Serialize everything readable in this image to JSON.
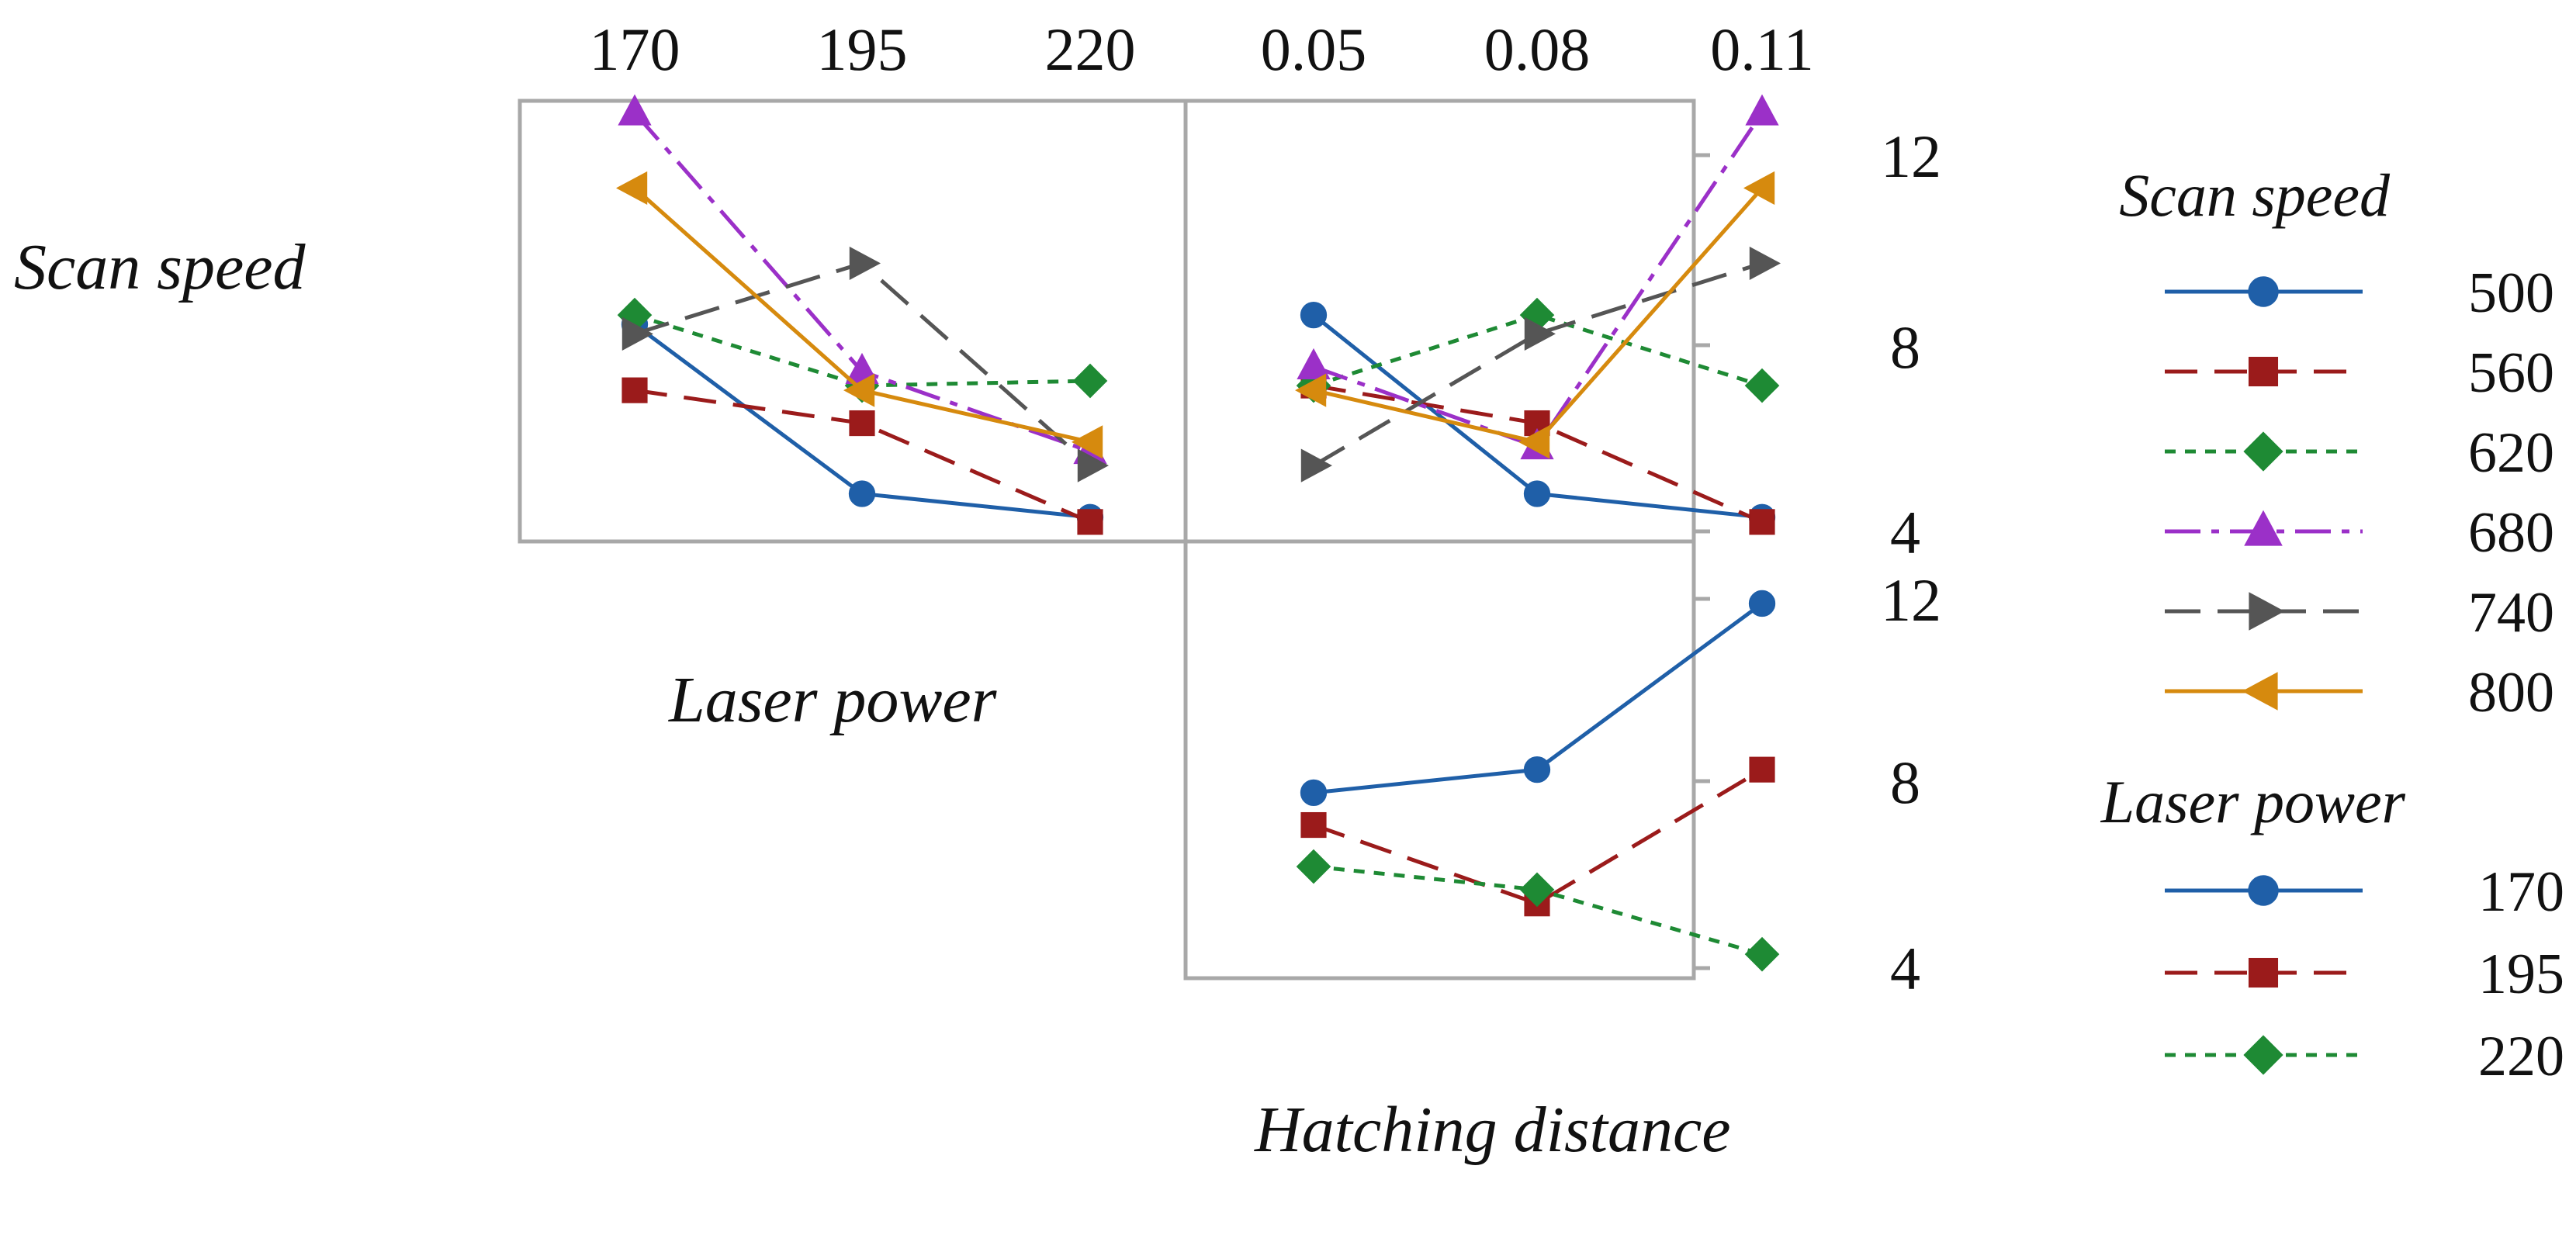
{
  "chart_data": [
    {
      "type": "line",
      "panel": "top-left",
      "x_factor": "Laser power",
      "trace_factor": "Scan speed",
      "categories": [
        "170",
        "195",
        "220"
      ],
      "ylim": [
        4,
        13
      ],
      "series": [
        {
          "name": "500",
          "values": [
            8.4,
            4.8,
            4.3
          ]
        },
        {
          "name": "560",
          "values": [
            7.0,
            6.3,
            4.2
          ]
        },
        {
          "name": "620",
          "values": [
            8.6,
            7.1,
            7.2
          ]
        },
        {
          "name": "680",
          "values": [
            12.9,
            7.4,
            5.7
          ]
        },
        {
          "name": "740",
          "values": [
            8.2,
            9.7,
            5.4
          ]
        },
        {
          "name": "800",
          "values": [
            11.3,
            7.0,
            5.9
          ]
        }
      ]
    },
    {
      "type": "line",
      "panel": "top-right",
      "x_factor": "Hatching distance",
      "trace_factor": "Scan speed",
      "categories": [
        "0.05",
        "0.08",
        "0.11"
      ],
      "ylim": [
        4,
        13
      ],
      "series": [
        {
          "name": "500",
          "values": [
            8.6,
            4.8,
            4.3
          ]
        },
        {
          "name": "560",
          "values": [
            7.1,
            6.3,
            4.2
          ]
        },
        {
          "name": "620",
          "values": [
            7.1,
            8.6,
            7.1
          ]
        },
        {
          "name": "680",
          "values": [
            7.5,
            5.8,
            12.9
          ]
        },
        {
          "name": "740",
          "values": [
            5.4,
            8.2,
            9.7
          ]
        },
        {
          "name": "800",
          "values": [
            7.0,
            5.9,
            11.3
          ]
        }
      ]
    },
    {
      "type": "line",
      "panel": "bottom-right",
      "x_factor": "Hatching distance",
      "trace_factor": "Laser power",
      "categories": [
        "0.05",
        "0.08",
        "0.11"
      ],
      "ylim": [
        4,
        13
      ],
      "series": [
        {
          "name": "170",
          "values": [
            7.8,
            8.3,
            11.9
          ]
        },
        {
          "name": "195",
          "values": [
            7.1,
            5.4,
            8.3
          ]
        },
        {
          "name": "220",
          "values": [
            6.2,
            5.7,
            4.3
          ]
        }
      ]
    }
  ],
  "axis": {
    "top_left_ticks": [
      "170",
      "195",
      "220"
    ],
    "top_right_ticks": [
      "0.05",
      "0.08",
      "0.11"
    ],
    "y_ticks": [
      4,
      8,
      12
    ],
    "y_tick_labels": [
      "4",
      "8",
      "12"
    ]
  },
  "labels": {
    "scan_speed": "Scan speed",
    "laser_power": "Laser power",
    "hatching_distance": "Hatching distance"
  },
  "legends": [
    {
      "title": "Scan speed",
      "entries": [
        "500",
        "560",
        "620",
        "680",
        "740",
        "800"
      ]
    },
    {
      "title": "Laser power",
      "entries": [
        "170",
        "195",
        "220"
      ]
    }
  ],
  "styles": [
    {
      "color": "#1f5fa8",
      "dash": "none",
      "marker": "circle"
    },
    {
      "color": "#9b1b1b",
      "dash": "42 22",
      "marker": "square"
    },
    {
      "color": "#1e8a34",
      "dash": "14 12",
      "marker": "diamond"
    },
    {
      "color": "#9b30c8",
      "dash": "46 14 10 14",
      "marker": "triangle-up"
    },
    {
      "color": "#555555",
      "dash": "46 22",
      "marker": "triangle-right"
    },
    {
      "color": "#d68a0e",
      "dash": "none",
      "marker": "triangle-left"
    }
  ],
  "frame_color": "#a8a8a8"
}
